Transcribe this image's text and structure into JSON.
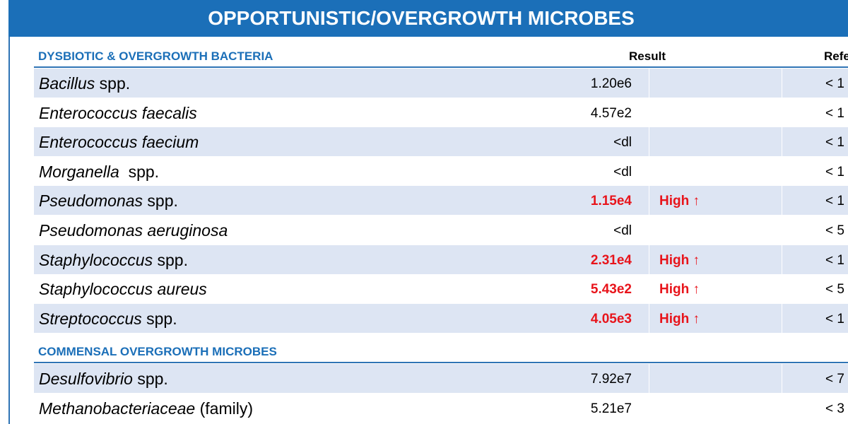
{
  "title": "OPPORTUNISTIC/OVERGROWTH MICROBES",
  "sections": [
    {
      "label": "DYSBIOTIC & OVERGROWTH BACTERIA",
      "result_header": "Result",
      "ref_header": "Refe",
      "rows": [
        {
          "italic": "Bacillus",
          "suffix": " spp.",
          "result": "1.20e6",
          "high": false,
          "flag": "",
          "ref": "< 1"
        },
        {
          "italic": "Enterococcus faecalis",
          "suffix": "",
          "result": "4.57e2",
          "high": false,
          "flag": "",
          "ref": "< 1"
        },
        {
          "italic": "Enterococcus faecium",
          "suffix": "",
          "result": "<dl",
          "high": false,
          "flag": "",
          "ref": "< 1"
        },
        {
          "italic": "Morganella",
          "suffix": "  spp.",
          "result": "<dl",
          "high": false,
          "flag": "",
          "ref": "< 1"
        },
        {
          "italic": "Pseudomonas",
          "suffix": " spp.",
          "result": "1.15e4",
          "high": true,
          "flag": "High ↑",
          "ref": "< 1"
        },
        {
          "italic": "Pseudomonas aeruginosa",
          "suffix": "",
          "result": "<dl",
          "high": false,
          "flag": "",
          "ref": "< 5"
        },
        {
          "italic": "Staphylococcus",
          "suffix": " spp.",
          "result": "2.31e4",
          "high": true,
          "flag": "High ↑",
          "ref": "< 1"
        },
        {
          "italic": "Staphylococcus aureus",
          "suffix": "",
          "result": "5.43e2",
          "high": true,
          "flag": "High ↑",
          "ref": "< 5"
        },
        {
          "italic": "Streptococcus",
          "suffix": " spp.",
          "result": "4.05e3",
          "high": true,
          "flag": "High ↑",
          "ref": "< 1"
        }
      ]
    },
    {
      "label": "COMMENSAL OVERGROWTH MICROBES",
      "result_header": "",
      "ref_header": "",
      "rows": [
        {
          "italic": "Desulfovibrio",
          "suffix": " spp.",
          "result": "7.92e7",
          "high": false,
          "flag": "",
          "ref": "< 7"
        },
        {
          "italic": "Methanobacteriaceae",
          "suffix": " (family)",
          "result": "5.21e7",
          "high": false,
          "flag": "",
          "ref": "< 3"
        }
      ]
    }
  ]
}
